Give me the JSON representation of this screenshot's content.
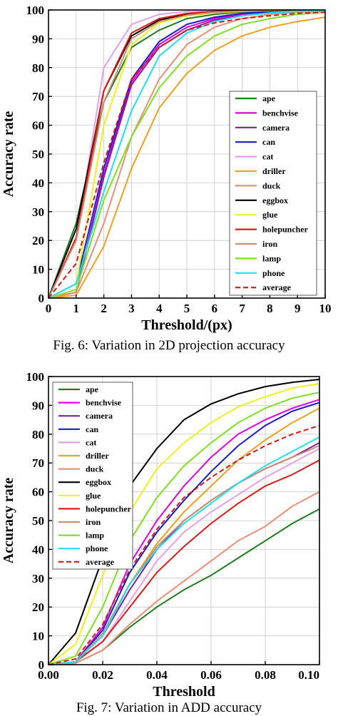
{
  "figures": [
    {
      "caption": "Fig. 6: Variation in 2D projection accuracy",
      "chart_data": {
        "type": "line",
        "xlabel": "Threshold/(px)",
        "ylabel": "Accuracy rate",
        "xlim": [
          0,
          10
        ],
        "ylim": [
          0,
          100
        ],
        "x_ticks": [
          "0",
          "1",
          "2",
          "3",
          "4",
          "5",
          "6",
          "7",
          "8",
          "9",
          "10"
        ],
        "y_ticks": [
          "0",
          "10",
          "20",
          "30",
          "40",
          "50",
          "60",
          "70",
          "80",
          "90",
          "100"
        ],
        "grid": true,
        "legend_position": "bottom-right",
        "x": [
          0,
          1,
          2,
          3,
          4,
          5,
          6,
          7,
          8,
          9,
          10
        ],
        "series": [
          {
            "name": "ape",
            "color": "#1e7b1e",
            "dash": false,
            "values": [
              0,
              26,
              68,
              87,
              93,
              97,
              98.5,
              99.3,
              99.6,
              99.8,
              99.9
            ]
          },
          {
            "name": "benchvise",
            "color": "#e000e0",
            "dash": false,
            "values": [
              0,
              2,
              43,
              75,
              88,
              94,
              97,
              98.5,
              99,
              99.5,
              99.7
            ]
          },
          {
            "name": "camera",
            "color": "#8b1a9a",
            "dash": false,
            "values": [
              0,
              2,
              42,
              74,
              87,
              93,
              96.5,
              98,
              99,
              99.3,
              99.6
            ]
          },
          {
            "name": "can",
            "color": "#1a1acc",
            "dash": false,
            "values": [
              0,
              5,
              45,
              76,
              89,
              95,
              97.5,
              98.8,
              99.3,
              99.6,
              99.8
            ]
          },
          {
            "name": "cat",
            "color": "#e8a0e8",
            "dash": false,
            "values": [
              0,
              20,
              80,
              95,
              98.5,
              99.5,
              99.8,
              99.9,
              100,
              100,
              100
            ]
          },
          {
            "name": "driller",
            "color": "#f0a020",
            "dash": false,
            "values": [
              0,
              1,
              18,
              45,
              66,
              78,
              86,
              91,
              94,
              96,
              97.5
            ]
          },
          {
            "name": "duck",
            "color": "#e8907a",
            "dash": false,
            "values": [
              0,
              2,
              26,
              56,
              76,
              88,
              94,
              97,
              98.5,
              99.2,
              99.6
            ]
          },
          {
            "name": "eggbox",
            "color": "#000000",
            "dash": false,
            "values": [
              0,
              24,
              72,
              91,
              96.5,
              98.5,
              99.5,
              99.8,
              99.9,
              100,
              100
            ]
          },
          {
            "name": "glue",
            "color": "#f0f020",
            "dash": false,
            "values": [
              0,
              5,
              60,
              88,
              95.5,
              98,
              99,
              99.5,
              99.8,
              99.9,
              100
            ]
          },
          {
            "name": "holepuncher",
            "color": "#e01818",
            "dash": false,
            "values": [
              0,
              21,
              72,
              92,
              97,
              98.8,
              99.5,
              99.8,
              99.9,
              100,
              100
            ]
          },
          {
            "name": "iron",
            "color": "#c89070",
            "dash": false,
            "values": [
              0,
              20,
              68,
              90,
              96,
              98.2,
              99.2,
              99.6,
              99.8,
              99.9,
              100
            ]
          },
          {
            "name": "lamp",
            "color": "#80e020",
            "dash": false,
            "values": [
              0,
              3,
              34,
              56,
              73,
              84,
              91,
              95,
              97,
              98.5,
              99.2
            ]
          },
          {
            "name": "phone",
            "color": "#20e0f0",
            "dash": false,
            "values": [
              0,
              5,
              37,
              65,
              84,
              92,
              96,
              98,
              99,
              99.5,
              99.8
            ]
          },
          {
            "name": "average",
            "color": "#d01818",
            "dash": true,
            "values": [
              0,
              12,
              47,
              76,
              87,
              93,
              95.5,
              97,
              98,
              98.8,
              99.2
            ]
          }
        ]
      }
    },
    {
      "caption": "Fig. 7: Variation in ADD accuracy",
      "chart_data": {
        "type": "line",
        "xlabel": "Threshold",
        "ylabel": "Accuracy rate",
        "xlim": [
          0,
          0.1
        ],
        "ylim": [
          0,
          100
        ],
        "x_ticks": [
          "0.00",
          "0.02",
          "0.04",
          "0.06",
          "0.08",
          "0.10"
        ],
        "y_ticks": [
          "0",
          "10",
          "20",
          "30",
          "40",
          "50",
          "60",
          "70",
          "80",
          "90",
          "100"
        ],
        "grid": true,
        "legend_position": "top-left",
        "x": [
          0,
          0.01,
          0.02,
          0.03,
          0.04,
          0.05,
          0.06,
          0.07,
          0.08,
          0.09,
          0.1
        ],
        "series": [
          {
            "name": "ape",
            "color": "#1e7b1e",
            "dash": false,
            "values": [
              0,
              0.5,
              5,
              13,
              20,
              26,
              31,
              37,
              43,
              49,
              54
            ]
          },
          {
            "name": "benchvise",
            "color": "#e000e0",
            "dash": false,
            "values": [
              0,
              1,
              13,
              35,
              50,
              62,
              72,
              80,
              85,
              89,
              92
            ]
          },
          {
            "name": "camera",
            "color": "#8b1a9a",
            "dash": false,
            "values": [
              0,
              1,
              10,
              26,
              40,
              50,
              57,
              63,
              68,
              72,
              77
            ]
          },
          {
            "name": "can",
            "color": "#1a1acc",
            "dash": false,
            "values": [
              0,
              1,
              12,
              32,
              46,
              57,
              67,
              76,
              83,
              88,
              91
            ]
          },
          {
            "name": "cat",
            "color": "#e8a0e8",
            "dash": false,
            "values": [
              0,
              1,
              8,
              22,
              36,
              46,
              53,
              59,
              65,
              70,
              75
            ]
          },
          {
            "name": "driller",
            "color": "#f0a020",
            "dash": false,
            "values": [
              0,
              1,
              10,
              28,
              42,
              53,
              62,
              71,
              78,
              84,
              89
            ]
          },
          {
            "name": "duck",
            "color": "#e8907a",
            "dash": false,
            "values": [
              0,
              0.5,
              5,
              14,
              22,
              29,
              36,
              43,
              48,
              55,
              60
            ]
          },
          {
            "name": "eggbox",
            "color": "#000000",
            "dash": false,
            "values": [
              0,
              11,
              37,
              62,
              75,
              85,
              90.5,
              94,
              96.5,
              98,
              99
            ]
          },
          {
            "name": "glue",
            "color": "#f0f020",
            "dash": false,
            "values": [
              0,
              7,
              31,
              53,
              68,
              77,
              84,
              89.5,
              93,
              96,
              97.5
            ]
          },
          {
            "name": "holepuncher",
            "color": "#e01818",
            "dash": false,
            "values": [
              0,
              1,
              8,
              20,
              32,
              41,
              49,
              56,
              62,
              66,
              71
            ]
          },
          {
            "name": "iron",
            "color": "#c89070",
            "dash": false,
            "values": [
              0,
              1,
              11,
              28,
              41,
              50,
              57,
              63,
              68,
              72,
              76
            ]
          },
          {
            "name": "lamp",
            "color": "#80e020",
            "dash": false,
            "values": [
              0,
              3,
              20,
              43,
              58,
              69,
              77,
              84,
              89,
              92.5,
              94.5
            ]
          },
          {
            "name": "phone",
            "color": "#20e0f0",
            "dash": false,
            "values": [
              0,
              1,
              10,
              28,
              40,
              49,
              56,
              63,
              69,
              74,
              79
            ]
          },
          {
            "name": "average",
            "color": "#d01818",
            "dash": true,
            "values": [
              0,
              2,
              14,
              33,
              47,
              58,
              65,
              71,
              76,
              80,
              83
            ]
          }
        ]
      }
    }
  ]
}
